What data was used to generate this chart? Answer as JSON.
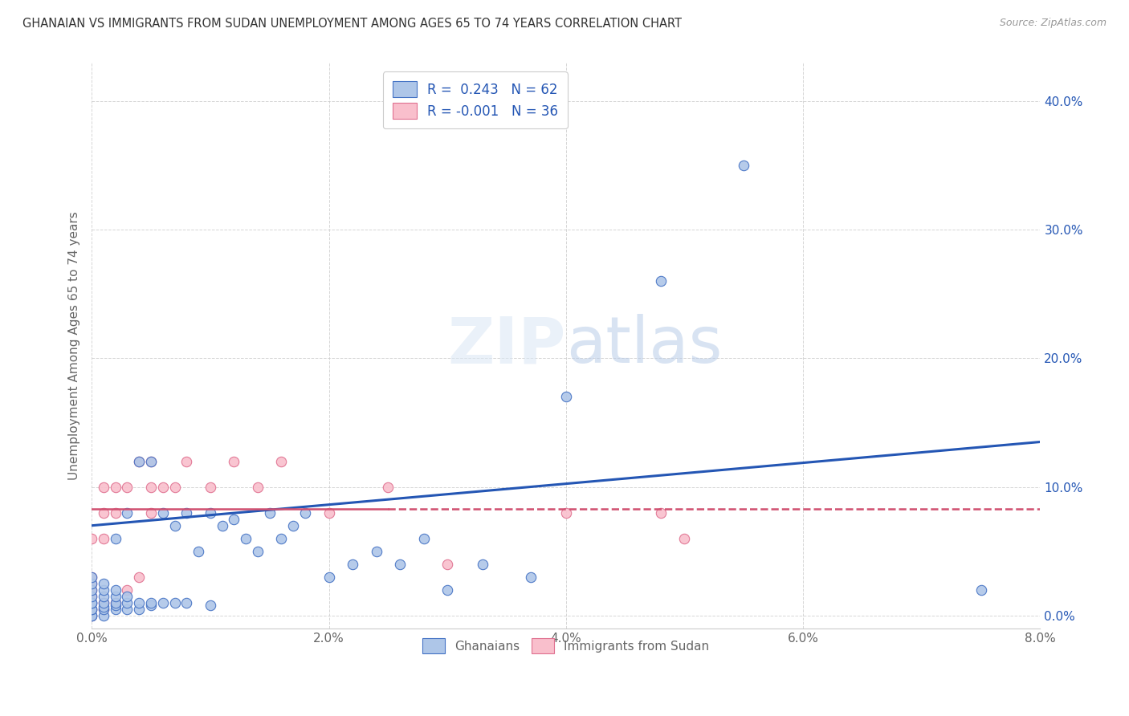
{
  "title": "GHANAIAN VS IMMIGRANTS FROM SUDAN UNEMPLOYMENT AMONG AGES 65 TO 74 YEARS CORRELATION CHART",
  "source": "Source: ZipAtlas.com",
  "ylabel": "Unemployment Among Ages 65 to 74 years",
  "xlim": [
    0.0,
    0.08
  ],
  "ylim": [
    -0.01,
    0.43
  ],
  "xticks": [
    0.0,
    0.02,
    0.04,
    0.06,
    0.08
  ],
  "yticks": [
    0.0,
    0.1,
    0.2,
    0.3,
    0.4
  ],
  "ghanaian_color": "#aec6e8",
  "ghanaian_edge": "#4472c4",
  "sudan_color": "#f9bfcc",
  "sudan_edge": "#e07090",
  "trend_ghanaian_color": "#2456b4",
  "trend_sudan_color": "#d05070",
  "legend_text_color": "#2456b4",
  "background_color": "#ffffff",
  "grid_color": "#cccccc",
  "yaxis_color": "#2456b4",
  "legend_label_1": "R =  0.243   N = 62",
  "legend_label_2": "R = -0.001   N = 36",
  "bottom_label_1": "Ghanaians",
  "bottom_label_2": "Immigrants from Sudan",
  "ghanaian_x": [
    0.0,
    0.0,
    0.0,
    0.0,
    0.0,
    0.0,
    0.0,
    0.0,
    0.0,
    0.0,
    0.001,
    0.001,
    0.001,
    0.001,
    0.001,
    0.001,
    0.001,
    0.002,
    0.002,
    0.002,
    0.002,
    0.002,
    0.002,
    0.003,
    0.003,
    0.003,
    0.003,
    0.004,
    0.004,
    0.004,
    0.005,
    0.005,
    0.005,
    0.006,
    0.006,
    0.007,
    0.007,
    0.008,
    0.008,
    0.009,
    0.01,
    0.01,
    0.011,
    0.012,
    0.013,
    0.014,
    0.015,
    0.016,
    0.017,
    0.018,
    0.02,
    0.022,
    0.024,
    0.026,
    0.028,
    0.03,
    0.033,
    0.037,
    0.04,
    0.048,
    0.055,
    0.075
  ],
  "ghanaian_y": [
    0.0,
    0.0,
    0.005,
    0.005,
    0.01,
    0.01,
    0.015,
    0.02,
    0.025,
    0.03,
    0.0,
    0.005,
    0.007,
    0.01,
    0.015,
    0.02,
    0.025,
    0.005,
    0.008,
    0.01,
    0.015,
    0.02,
    0.06,
    0.005,
    0.01,
    0.015,
    0.08,
    0.005,
    0.01,
    0.12,
    0.008,
    0.01,
    0.12,
    0.01,
    0.08,
    0.01,
    0.07,
    0.01,
    0.08,
    0.05,
    0.008,
    0.08,
    0.07,
    0.075,
    0.06,
    0.05,
    0.08,
    0.06,
    0.07,
    0.08,
    0.03,
    0.04,
    0.05,
    0.04,
    0.06,
    0.02,
    0.04,
    0.03,
    0.17,
    0.26,
    0.35,
    0.02
  ],
  "sudan_x": [
    0.0,
    0.0,
    0.0,
    0.0,
    0.0,
    0.0,
    0.0,
    0.0,
    0.001,
    0.001,
    0.001,
    0.001,
    0.001,
    0.002,
    0.002,
    0.002,
    0.003,
    0.003,
    0.004,
    0.004,
    0.005,
    0.005,
    0.005,
    0.006,
    0.007,
    0.008,
    0.01,
    0.012,
    0.014,
    0.016,
    0.02,
    0.025,
    0.03,
    0.04,
    0.048,
    0.05
  ],
  "sudan_y": [
    0.0,
    0.005,
    0.01,
    0.015,
    0.02,
    0.025,
    0.03,
    0.06,
    0.005,
    0.01,
    0.06,
    0.08,
    0.1,
    0.01,
    0.08,
    0.1,
    0.02,
    0.1,
    0.03,
    0.12,
    0.08,
    0.1,
    0.12,
    0.1,
    0.1,
    0.12,
    0.1,
    0.12,
    0.1,
    0.12,
    0.08,
    0.1,
    0.04,
    0.08,
    0.08,
    0.06
  ],
  "trend_g_x0": 0.0,
  "trend_g_y0": 0.07,
  "trend_g_x1": 0.08,
  "trend_g_y1": 0.135,
  "trend_s_x0": 0.0,
  "trend_s_y0": 0.083,
  "trend_s_x1": 0.08,
  "trend_s_y1": 0.083,
  "trend_s_solid_x1": 0.025,
  "trend_s_dashed_x0": 0.025
}
